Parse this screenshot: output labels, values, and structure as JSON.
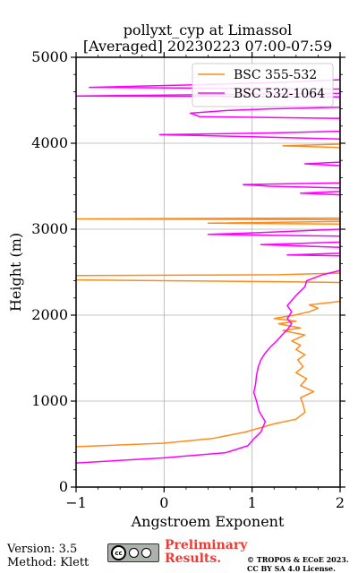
{
  "chart_data": {
    "type": "line",
    "title": "pollyxt_cyp at Limassol",
    "subtitle": "[Averaged] 20230223 07:00-07:59",
    "xlabel": "Angstroem Exponent",
    "ylabel": "Height (m)",
    "xlim": [
      -1,
      2
    ],
    "ylim": [
      0,
      5000
    ],
    "xticks": [
      -1,
      0,
      1,
      2
    ],
    "yticks": [
      0,
      1000,
      2000,
      3000,
      4000,
      5000
    ],
    "grid": true,
    "legend_position": "top-right",
    "series": [
      {
        "name": "BSC 355-532",
        "color": "#ff8c1a",
        "points": [
          [
            -1,
            470
          ],
          [
            0,
            510
          ],
          [
            0.55,
            565
          ],
          [
            0.92,
            640
          ],
          [
            1.25,
            735
          ],
          [
            1.5,
            790
          ],
          [
            1.6,
            870
          ],
          [
            1.58,
            960
          ],
          [
            1.55,
            1040
          ],
          [
            1.7,
            1110
          ],
          [
            1.55,
            1180
          ],
          [
            1.62,
            1260
          ],
          [
            1.5,
            1330
          ],
          [
            1.58,
            1400
          ],
          [
            1.52,
            1480
          ],
          [
            1.6,
            1540
          ],
          [
            1.5,
            1600
          ],
          [
            1.55,
            1650
          ],
          [
            1.45,
            1700
          ],
          [
            1.6,
            1770
          ],
          [
            1.35,
            1820
          ],
          [
            1.55,
            1850
          ],
          [
            1.3,
            1900
          ],
          [
            1.5,
            1930
          ],
          [
            1.25,
            1960
          ],
          [
            1.48,
            2000
          ],
          [
            1.65,
            2040
          ],
          [
            1.75,
            2080
          ],
          [
            1.65,
            2120
          ],
          [
            2,
            2160
          ],
          [
            2,
            2380
          ],
          [
            1.3,
            2390
          ],
          [
            -1,
            2410
          ],
          [
            -1,
            2460
          ],
          [
            1.3,
            2470
          ],
          [
            2,
            2490
          ],
          [
            2,
            3060
          ],
          [
            0.5,
            3070
          ],
          [
            2,
            3090
          ],
          [
            2,
            3110
          ],
          [
            -1,
            3120
          ],
          [
            2,
            3130
          ],
          [
            2,
            3950
          ],
          [
            1.35,
            3970
          ],
          [
            2,
            3990
          ],
          [
            2,
            5000
          ]
        ]
      },
      {
        "name": "BSC 532-1064",
        "color": "#ff00ff",
        "points": [
          [
            -1,
            280
          ],
          [
            0,
            340
          ],
          [
            0.7,
            400
          ],
          [
            0.95,
            480
          ],
          [
            1.02,
            560
          ],
          [
            1.1,
            640
          ],
          [
            1.15,
            760
          ],
          [
            1.08,
            880
          ],
          [
            1.05,
            1000
          ],
          [
            1.02,
            1100
          ],
          [
            1.04,
            1200
          ],
          [
            1.05,
            1300
          ],
          [
            1.07,
            1400
          ],
          [
            1.1,
            1480
          ],
          [
            1.15,
            1560
          ],
          [
            1.2,
            1620
          ],
          [
            1.28,
            1700
          ],
          [
            1.35,
            1780
          ],
          [
            1.4,
            1830
          ],
          [
            1.45,
            1900
          ],
          [
            1.4,
            1960
          ],
          [
            1.45,
            2040
          ],
          [
            1.4,
            2110
          ],
          [
            1.45,
            2170
          ],
          [
            1.5,
            2230
          ],
          [
            1.55,
            2280
          ],
          [
            1.6,
            2330
          ],
          [
            1.62,
            2400
          ],
          [
            1.72,
            2440
          ],
          [
            1.8,
            2470
          ],
          [
            2,
            2520
          ],
          [
            2,
            2690
          ],
          [
            1.4,
            2700
          ],
          [
            2,
            2720
          ],
          [
            2,
            2790
          ],
          [
            1.1,
            2820
          ],
          [
            2,
            2850
          ],
          [
            2,
            2920
          ],
          [
            0.5,
            2940
          ],
          [
            1.1,
            2960
          ],
          [
            2,
            3000
          ],
          [
            2,
            3400
          ],
          [
            1.55,
            3420
          ],
          [
            2,
            3440
          ],
          [
            2,
            3480
          ],
          [
            1.2,
            3500
          ],
          [
            0.9,
            3520
          ],
          [
            2,
            3540
          ],
          [
            2,
            3740
          ],
          [
            1.6,
            3760
          ],
          [
            2,
            3780
          ],
          [
            2,
            4050
          ],
          [
            0.8,
            4080
          ],
          [
            -0.05,
            4100
          ],
          [
            1.2,
            4120
          ],
          [
            2,
            4140
          ],
          [
            2,
            4290
          ],
          [
            0.4,
            4310
          ],
          [
            0.3,
            4350
          ],
          [
            0.7,
            4380
          ],
          [
            1.2,
            4400
          ],
          [
            2,
            4420
          ],
          [
            2,
            4540
          ],
          [
            -1,
            4550
          ],
          [
            0,
            4560
          ],
          [
            2,
            4580
          ],
          [
            2,
            4630
          ],
          [
            -0.85,
            4650
          ],
          [
            0.35,
            4680
          ],
          [
            1.4,
            4710
          ],
          [
            2,
            4740
          ],
          [
            2,
            5000
          ]
        ]
      }
    ]
  },
  "footer": {
    "version": "Version: 3.5",
    "method": "Method: Klett",
    "badge_text": "cc",
    "preliminary_line1": "Preliminary",
    "preliminary_line2": "Results.",
    "copyright_line1": "© TROPOS & ECoE 2023.",
    "copyright_line2": "CC BY SA 4.0 License."
  }
}
